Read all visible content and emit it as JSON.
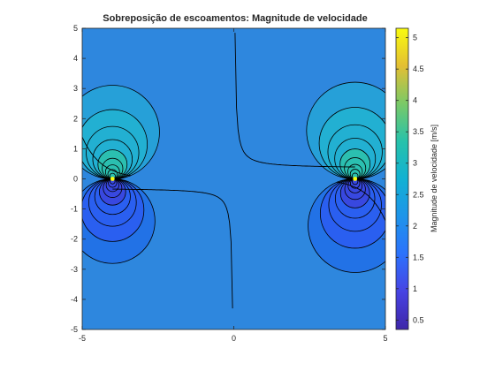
{
  "chart_data": {
    "type": "contour",
    "title": "Sobreposição de escoamentos: Magnitude de velocidade",
    "xlabel": "",
    "ylabel": "",
    "xlim": [
      -5,
      5
    ],
    "ylim": [
      -5,
      5
    ],
    "x_ticks": [
      "-5",
      "0",
      "5"
    ],
    "y_ticks": [
      "5",
      "4",
      "3",
      "2",
      "1",
      "0",
      "-1",
      "-2",
      "-3",
      "-4",
      "-5"
    ],
    "colorbar": {
      "label": "Magnitude de velocidade [m/s]",
      "range": [
        0.35,
        5.15
      ],
      "ticks": [
        "5",
        "4.5",
        "4",
        "3.5",
        "3",
        "2.5",
        "2",
        "1.5",
        "1",
        "0.5"
      ],
      "colormap": "parula"
    },
    "background_level": 1.75,
    "singular_points": [
      {
        "x": -4,
        "y": 0
      },
      {
        "x": 4,
        "y": 0
      }
    ],
    "lobe_contours": [
      {
        "label": "left-upper-outer",
        "cx": -4.0,
        "cy": 1.55,
        "r": 1.55
      },
      {
        "label": "left-lower-outer",
        "cx": -4.0,
        "cy": -1.4,
        "r": 1.4
      },
      {
        "label": "right-upper-outer",
        "cx": 4.0,
        "cy": 1.6,
        "r": 1.6
      },
      {
        "label": "right-lower-outer",
        "cx": 4.0,
        "cy": -1.55,
        "r": 1.55
      }
    ],
    "grid": false,
    "legend": "none"
  },
  "colors": {
    "background_fill": "#2e87de",
    "lobe_bright": "#26a0d8",
    "lobe_dark": "#2272e6",
    "singular_point": "#f9fb0e",
    "contour_line": "#000000",
    "axis": "#262626"
  }
}
